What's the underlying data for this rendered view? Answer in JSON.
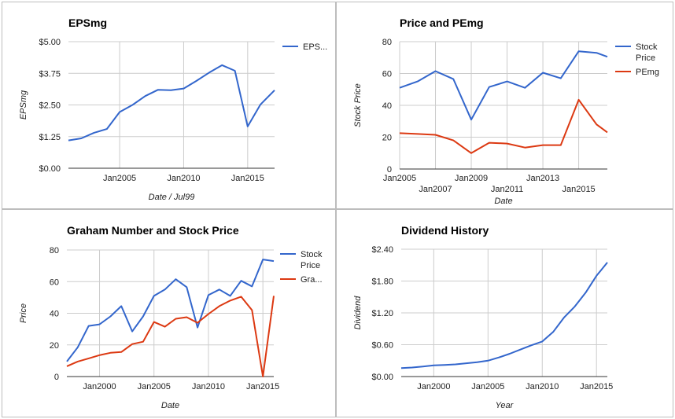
{
  "chart_data": [
    {
      "type": "line",
      "title": "EPSmg",
      "xlabel": "Date / Jul99",
      "ylabel": "EPSmg",
      "ylim": [
        0,
        5
      ],
      "y_ticks": [
        "$0.00",
        "$1.25",
        "$2.50",
        "$3.75",
        "$5.00"
      ],
      "x_ticks": [
        {
          "label": "Jan2005",
          "x": 2005
        },
        {
          "label": "Jan2010",
          "x": 2010
        },
        {
          "label": "Jan2015",
          "x": 2015
        }
      ],
      "xlim": [
        2001,
        2017.1
      ],
      "grid": true,
      "legend": "right",
      "series": [
        {
          "name": "EPS...",
          "color": "#3366cc",
          "x": [
            2001,
            2002,
            2003,
            2004,
            2005,
            2006,
            2007,
            2008,
            2009,
            2010,
            2011,
            2012,
            2013,
            2014,
            2015,
            2016,
            2017.1
          ],
          "values": [
            1.1,
            1.18,
            1.4,
            1.55,
            2.22,
            2.5,
            2.85,
            3.1,
            3.08,
            3.15,
            3.45,
            3.78,
            4.07,
            3.85,
            1.65,
            2.52,
            3.08
          ]
        }
      ]
    },
    {
      "type": "line",
      "title": "Price and PEmg",
      "xlabel": "Date",
      "ylabel": "Stock Price",
      "ylim": [
        0,
        80
      ],
      "y_ticks": [
        "0",
        "20",
        "40",
        "60",
        "80"
      ],
      "x_ticks": [
        {
          "label": "Jan2005",
          "x": 2005
        },
        {
          "label": "Jan2007",
          "x": 2007
        },
        {
          "label": "Jan2009",
          "x": 2009
        },
        {
          "label": "Jan2011",
          "x": 2011
        },
        {
          "label": "Jan2013",
          "x": 2013
        },
        {
          "label": "Jan2015",
          "x": 2015
        }
      ],
      "xlim": [
        2005,
        2016.6
      ],
      "grid": true,
      "legend": "right",
      "series": [
        {
          "name": "Stock Price",
          "color": "#3366cc",
          "x": [
            2005,
            2006,
            2007,
            2008,
            2009,
            2010,
            2011,
            2012,
            2013,
            2014,
            2015,
            2016,
            2016.6
          ],
          "values": [
            51,
            55,
            61.5,
            56.5,
            31,
            51.5,
            55,
            51,
            60.5,
            57,
            74,
            73,
            70.5
          ]
        },
        {
          "name": "PEmg",
          "color": "#dc3912",
          "x": [
            2005,
            2006,
            2007,
            2008,
            2009,
            2010,
            2011,
            2012,
            2013,
            2014,
            2015,
            2016,
            2016.6
          ],
          "values": [
            22.5,
            22,
            21.5,
            18,
            10,
            16.5,
            16,
            13.5,
            15,
            15,
            43.5,
            28,
            23
          ]
        }
      ]
    },
    {
      "type": "line",
      "title": "Graham Number and Stock Price",
      "xlabel": "Date",
      "ylabel": "Price",
      "ylim": [
        0,
        80
      ],
      "y_ticks": [
        "0",
        "20",
        "40",
        "60",
        "80"
      ],
      "x_ticks": [
        {
          "label": "Jan2000",
          "x": 2000
        },
        {
          "label": "Jan2005",
          "x": 2005
        },
        {
          "label": "Jan2010",
          "x": 2010
        },
        {
          "label": "Jan2015",
          "x": 2015
        }
      ],
      "xlim": [
        1997,
        2016
      ],
      "grid": true,
      "legend": "right",
      "series": [
        {
          "name": "Stock Price",
          "color": "#3366cc",
          "x": [
            1997,
            1998,
            1999,
            2000,
            2001,
            2002,
            2003,
            2004,
            2005,
            2006,
            2007,
            2008,
            2009,
            2010,
            2011,
            2012,
            2013,
            2014,
            2015,
            2016
          ],
          "values": [
            9.5,
            18.5,
            32,
            33,
            38,
            44.5,
            28.5,
            38,
            51,
            55,
            61.5,
            56.5,
            31,
            51.5,
            55,
            51,
            60.5,
            57,
            74,
            73
          ]
        },
        {
          "name": "Gra...",
          "color": "#dc3912",
          "x": [
            1997,
            1998,
            1999,
            2000,
            2001,
            2002,
            2003,
            2004,
            2005,
            2006,
            2007,
            2008,
            2009,
            2010,
            2011,
            2012,
            2013,
            2014,
            2015,
            2016
          ],
          "values": [
            6.5,
            9.5,
            11.5,
            13.5,
            15,
            15.5,
            20.5,
            22,
            34.5,
            31.5,
            36.5,
            37.5,
            34,
            39.5,
            44.5,
            48,
            50.5,
            42,
            0,
            51
          ]
        }
      ]
    },
    {
      "type": "line",
      "title": "Dividend History",
      "xlabel": "Year",
      "ylabel": "Dividend",
      "ylim": [
        0,
        2.4
      ],
      "y_ticks": [
        "$0.00",
        "$0.60",
        "$1.20",
        "$1.80",
        "$2.40"
      ],
      "x_ticks": [
        {
          "label": "Jan2000",
          "x": 2000
        },
        {
          "label": "Jan2005",
          "x": 2005
        },
        {
          "label": "Jan2010",
          "x": 2010
        },
        {
          "label": "Jan2015",
          "x": 2015
        }
      ],
      "xlim": [
        1997,
        2016
      ],
      "grid": true,
      "legend": "none",
      "series": [
        {
          "name": "",
          "color": "#3366cc",
          "x": [
            1997,
            1998,
            1999,
            2000,
            2001,
            2002,
            2003,
            2004,
            2005,
            2006,
            2007,
            2008,
            2009,
            2010,
            2011,
            2012,
            2013,
            2014,
            2015,
            2016
          ],
          "values": [
            0.16,
            0.17,
            0.19,
            0.21,
            0.22,
            0.23,
            0.25,
            0.27,
            0.3,
            0.36,
            0.43,
            0.51,
            0.59,
            0.66,
            0.84,
            1.11,
            1.32,
            1.58,
            1.9,
            2.15
          ]
        }
      ]
    }
  ]
}
